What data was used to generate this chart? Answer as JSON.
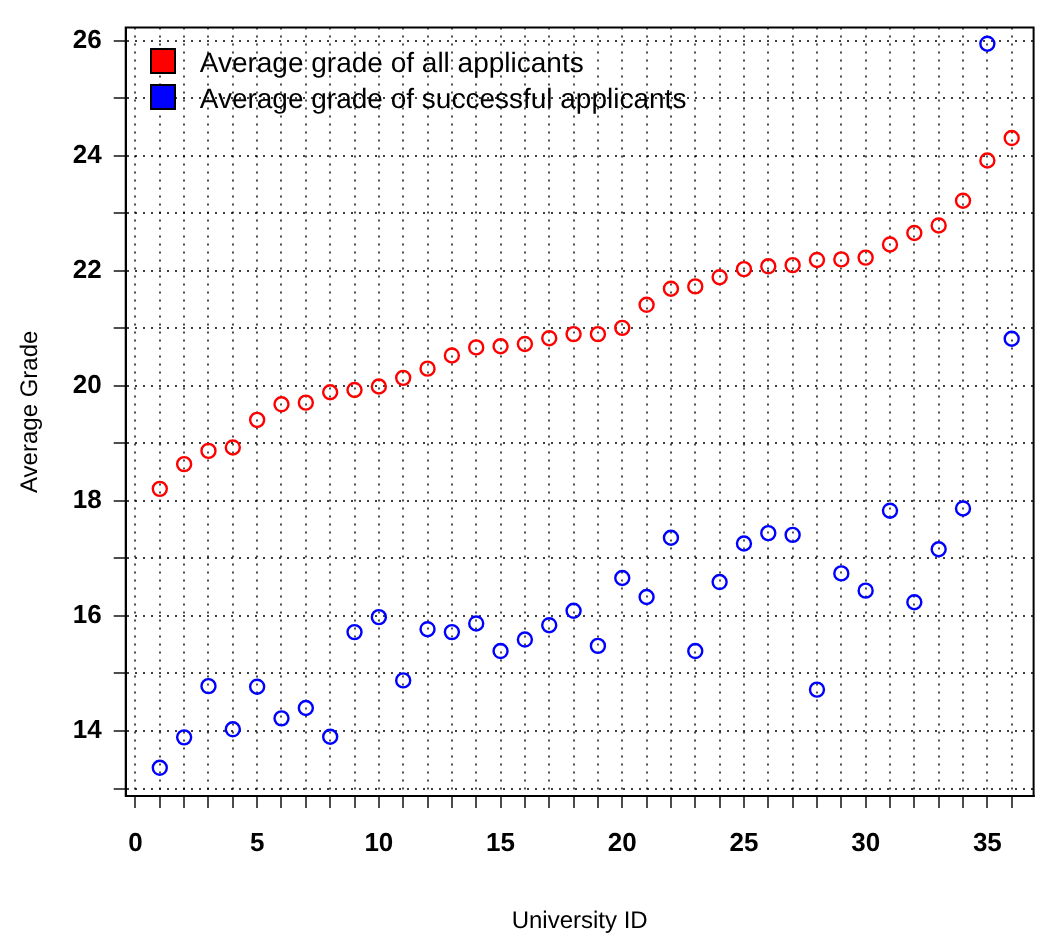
{
  "chart_data": {
    "type": "scatter",
    "xlabel": "University ID",
    "ylabel": "Average Grade",
    "x": [
      1,
      2,
      3,
      4,
      5,
      6,
      7,
      8,
      9,
      10,
      11,
      12,
      13,
      14,
      15,
      16,
      17,
      18,
      19,
      20,
      21,
      22,
      23,
      24,
      25,
      26,
      27,
      28,
      29,
      30,
      31,
      32,
      33,
      34,
      35,
      36
    ],
    "series": [
      {
        "name": "Average grade of all applicants",
        "color": "#ff0000",
        "values": [
          18.21,
          18.64,
          18.87,
          18.93,
          19.41,
          19.68,
          19.71,
          19.89,
          19.93,
          19.99,
          20.14,
          20.3,
          20.53,
          20.67,
          20.69,
          20.73,
          20.83,
          20.9,
          20.9,
          21.01,
          21.41,
          21.69,
          21.73,
          21.89,
          22.03,
          22.08,
          22.1,
          22.19,
          22.2,
          22.23,
          22.46,
          22.66,
          22.79,
          23.22,
          23.92,
          24.31
        ]
      },
      {
        "name": "Average grade of successful applicants",
        "color": "#0000ff",
        "values": [
          13.36,
          13.89,
          14.78,
          14.03,
          14.77,
          14.22,
          14.4,
          13.9,
          15.72,
          15.98,
          14.88,
          15.77,
          15.72,
          15.87,
          15.39,
          15.59,
          15.84,
          16.09,
          15.48,
          16.66,
          16.33,
          17.36,
          15.39,
          16.59,
          17.26,
          17.44,
          17.41,
          14.72,
          16.74,
          16.44,
          17.83,
          16.24,
          17.16,
          17.87,
          25.95,
          20.82
        ]
      }
    ],
    "xlim": [
      -0.4,
      36.9
    ],
    "xticks": [
      0,
      {
        "value": 1,
        "label": null
      },
      {
        "value": 2,
        "label": null
      },
      {
        "value": 3,
        "label": null
      },
      {
        "value": 4,
        "label": null
      },
      5,
      {
        "value": 6,
        "label": null
      },
      {
        "value": 7,
        "label": null
      },
      {
        "value": 8,
        "label": null
      },
      {
        "value": 9,
        "label": null
      },
      10,
      {
        "value": 11,
        "label": null
      },
      {
        "value": 12,
        "label": null
      },
      {
        "value": 13,
        "label": null
      },
      {
        "value": 14,
        "label": null
      },
      15,
      {
        "value": 16,
        "label": null
      },
      {
        "value": 17,
        "label": null
      },
      {
        "value": 18,
        "label": null
      },
      {
        "value": 19,
        "label": null
      },
      20,
      {
        "value": 21,
        "label": null
      },
      {
        "value": 22,
        "label": null
      },
      {
        "value": 23,
        "label": null
      },
      {
        "value": 24,
        "label": null
      },
      25,
      {
        "value": 26,
        "label": null
      },
      {
        "value": 27,
        "label": null
      },
      {
        "value": 28,
        "label": null
      },
      {
        "value": 29,
        "label": null
      },
      30,
      {
        "value": 31,
        "label": null
      },
      {
        "value": 32,
        "label": null
      },
      {
        "value": 33,
        "label": null
      },
      {
        "value": 34,
        "label": null
      },
      35,
      {
        "value": 36,
        "label": null
      }
    ],
    "ylim": [
      12.87,
      26.23
    ],
    "yticks": [
      {
        "value": 13,
        "label": null
      },
      14,
      {
        "value": 15,
        "label": null
      },
      16,
      {
        "value": 17,
        "label": null
      },
      18,
      {
        "value": 19,
        "label": null
      },
      20,
      {
        "value": 21,
        "label": null
      },
      22,
      {
        "value": 23,
        "label": null
      },
      24,
      {
        "value": 25,
        "label": null
      },
      26
    ],
    "grid": true,
    "legend": "top left",
    "marker": "circle"
  }
}
